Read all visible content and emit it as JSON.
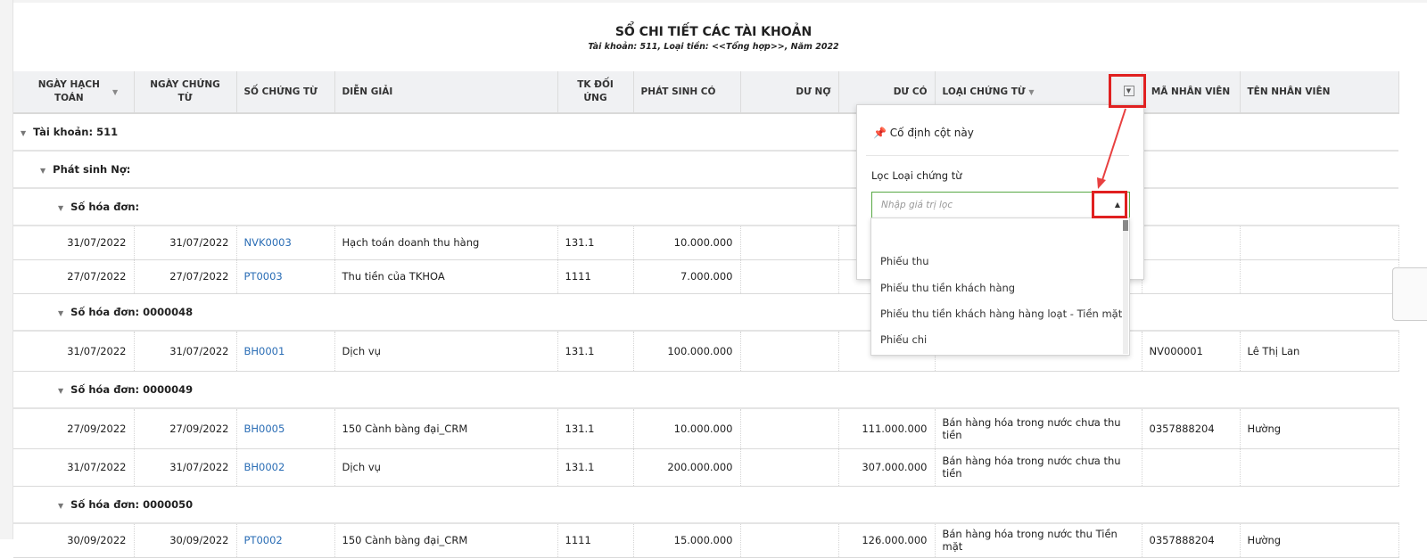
{
  "report": {
    "title": "SỔ CHI TIẾT CÁC TÀI KHOẢN",
    "subtitle": "Tài khoản: 511, Loại tiền: <<Tổng hợp>>, Năm 2022"
  },
  "columns": [
    "NGÀY HẠCH TOÁN",
    "NGÀY CHỨNG TỪ",
    "SỐ CHỨNG TỪ",
    "DIỄN GIẢI",
    "TK ĐỐI ỨNG",
    "PHÁT SINH CÓ",
    "DƯ NỢ",
    "DƯ CÓ",
    "LOẠI CHỨNG TỪ",
    "MÃ NHÂN VIÊN",
    "TÊN NHÂN VIÊN"
  ],
  "groups": {
    "account": "Tài khoản: 511",
    "debit": "Phát sinh Nợ:",
    "inv0": "Số hóa đơn:",
    "inv48": "Số hóa đơn: 0000048",
    "inv49": "Số hóa đơn: 0000049",
    "inv50": "Số hóa đơn: 0000050"
  },
  "rows": [
    {
      "ngay_ht": "31/07/2022",
      "ngay_ct": "31/07/2022",
      "so_ct": "NVK0003",
      "dien_giai": "Hạch toán doanh thu hàng",
      "tk": "131.1",
      "ps_co": "10.000.000",
      "du_no": "",
      "du_co": "",
      "loai": "",
      "ma_nv": "",
      "ten_nv": ""
    },
    {
      "ngay_ht": "27/07/2022",
      "ngay_ct": "27/07/2022",
      "so_ct": "PT0003",
      "dien_giai": "Thu tiền của TKHOA",
      "tk": "1111",
      "ps_co": "7.000.000",
      "du_no": "",
      "du_co": "",
      "loai": "",
      "ma_nv": "",
      "ten_nv": ""
    },
    {
      "ngay_ht": "31/07/2022",
      "ngay_ct": "31/07/2022",
      "so_ct": "BH0001",
      "dien_giai": "Dịch vụ",
      "tk": "131.1",
      "ps_co": "100.000.000",
      "du_no": "",
      "du_co": "",
      "loai": "",
      "ma_nv": "NV000001",
      "ten_nv": "Lê Thị Lan"
    },
    {
      "ngay_ht": "27/09/2022",
      "ngay_ct": "27/09/2022",
      "so_ct": "BH0005",
      "dien_giai": "150 Cành bàng đại_CRM",
      "tk": "131.1",
      "ps_co": "10.000.000",
      "du_no": "",
      "du_co": "111.000.000",
      "loai": "Bán hàng hóa trong nước chưa thu tiền",
      "ma_nv": "0357888204",
      "ten_nv": "Hường"
    },
    {
      "ngay_ht": "31/07/2022",
      "ngay_ct": "31/07/2022",
      "so_ct": "BH0002",
      "dien_giai": "Dịch vụ",
      "tk": "131.1",
      "ps_co": "200.000.000",
      "du_no": "",
      "du_co": "307.000.000",
      "loai": "Bán hàng hóa trong nước chưa thu tiền",
      "ma_nv": "",
      "ten_nv": ""
    },
    {
      "ngay_ht": "30/09/2022",
      "ngay_ct": "30/09/2022",
      "so_ct": "PT0002",
      "dien_giai": "150 Cành bàng đại_CRM",
      "tk": "1111",
      "ps_co": "15.000.000",
      "du_no": "",
      "du_co": "126.000.000",
      "loai": "Bán hàng hóa trong nước thu Tiền mặt",
      "ma_nv": "0357888204",
      "ten_nv": "Hường"
    }
  ],
  "popup": {
    "pin_label": "Cố định cột này",
    "filter_label": "Lọc Loại chứng từ",
    "filter_placeholder": "Nhập giá trị lọc",
    "options": [
      "",
      "Phiếu thu",
      "Phiếu thu tiền khách hàng",
      "Phiếu thu tiền khách hàng hàng loạt - Tiền mặt",
      "Phiếu chi"
    ]
  },
  "colors": {
    "link": "#2a6db5",
    "highlight": "#e02020",
    "input_border": "#57a844"
  }
}
